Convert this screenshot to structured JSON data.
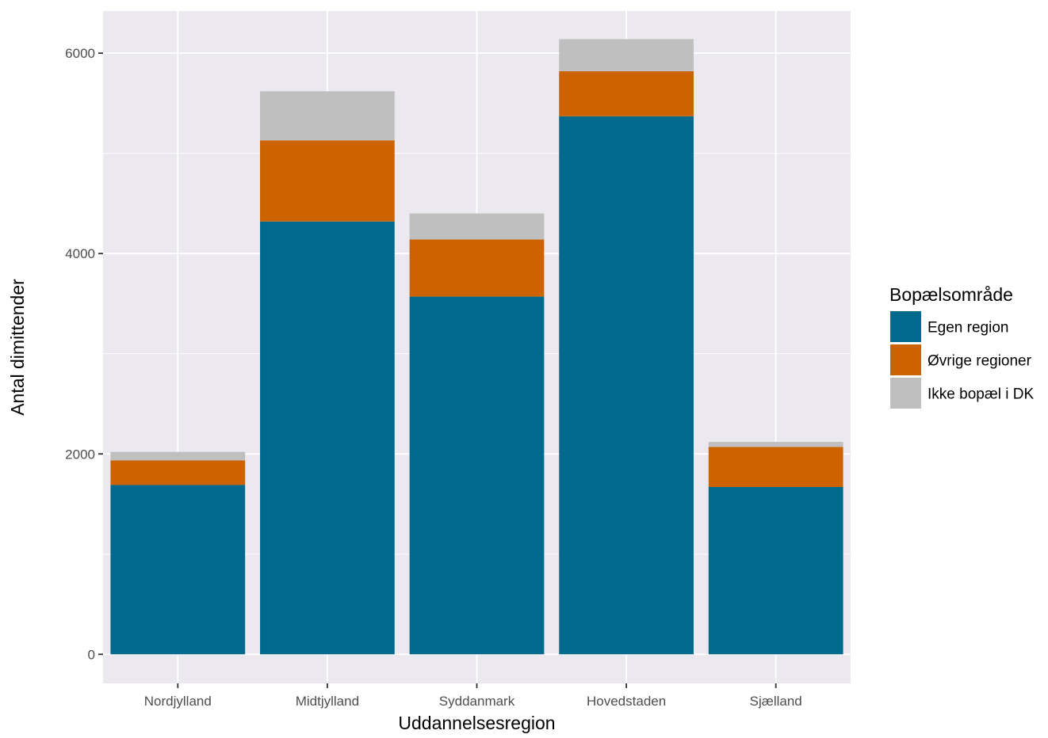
{
  "chart_data": {
    "type": "bar",
    "stacked": true,
    "title": "",
    "xlabel": "Uddannelsesregion",
    "ylabel": "Antal dimittender",
    "categories": [
      "Nordjylland",
      "Midtjylland",
      "Syddanmark",
      "Hovedstaden",
      "Sjælland"
    ],
    "series": [
      {
        "name": "Egen region",
        "color": "#006a8e",
        "values": [
          1690,
          4320,
          3570,
          5370,
          1670
        ]
      },
      {
        "name": "Øvrige regioner",
        "color": "#cc6300",
        "values": [
          245,
          810,
          570,
          450,
          400
        ]
      },
      {
        "name": "Ikke bopæl i DK",
        "color": "#bfbfbf",
        "values": [
          85,
          490,
          260,
          320,
          50
        ]
      }
    ],
    "ylim": [
      -290,
      6420
    ],
    "yticks": [
      0,
      2000,
      4000,
      6000
    ],
    "ytick_labels": [
      "0",
      "2000",
      "4000",
      "6000"
    ],
    "legend": {
      "title": "Bopælsområde",
      "position": "right"
    },
    "grid": true,
    "panel_background": "#ebe9ef"
  }
}
